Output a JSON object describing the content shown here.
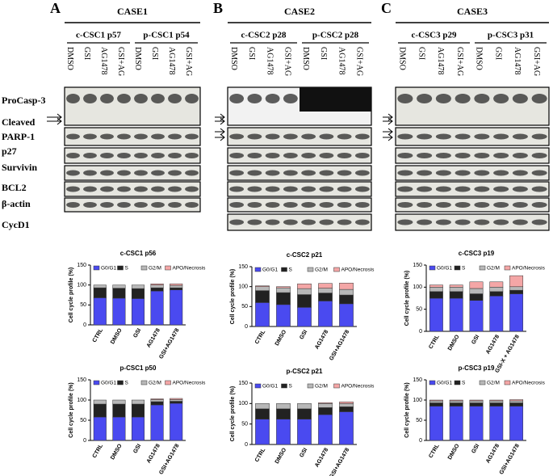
{
  "panels": [
    {
      "label": "A",
      "case": "CASE1",
      "groups": [
        {
          "name": "c-CSC1 p57",
          "lanes": [
            "DMSO",
            "GSI",
            "AG1478",
            "GSI+AG"
          ]
        },
        {
          "name": "p-CSC1 p54",
          "lanes": [
            "DMSO",
            "GSI",
            "AG1478",
            "GSI+AG"
          ]
        }
      ],
      "rows": [
        "ProCasp-3",
        "Cleaved",
        "PARP-1",
        "p27",
        "Survivin",
        "BCL2",
        "β-actin",
        "CycD1"
      ]
    },
    {
      "label": "B",
      "case": "CASE2",
      "groups": [
        {
          "name": "c-CSC2 p28",
          "lanes": [
            "DMSO",
            "GSI",
            "AG1478",
            "GSI+AG"
          ]
        },
        {
          "name": "p-CSC2 p28",
          "lanes": [
            "DMSO",
            "GSI",
            "AG1478",
            "GSI+AG"
          ]
        }
      ]
    },
    {
      "label": "C",
      "case": "CASE3",
      "groups": [
        {
          "name": "c-CSC3 p29",
          "lanes": [
            "DMSO",
            "GSI",
            "AG1478",
            "GSI+AG"
          ]
        },
        {
          "name": "p-CSC3 p31",
          "lanes": [
            "DMSO",
            "GSI",
            "AG1478",
            "GSI+AG"
          ]
        }
      ]
    }
  ],
  "chart_data": [
    {
      "type": "stacked_bar",
      "title": "c-CSC1 p56",
      "y_label": "Cell cycle profile (%)",
      "categories": [
        "CTRL",
        "DMSO",
        "GSI",
        "AG1478",
        "GSI+AG1478"
      ],
      "ylim": [
        0,
        150
      ],
      "yticks": [
        0,
        50,
        100,
        150
      ],
      "series": [
        {
          "name": "G0/G1",
          "color": "#4a4af0",
          "values": [
            68,
            67,
            66,
            85,
            88
          ]
        },
        {
          "name": "S",
          "color": "#222222",
          "values": [
            25,
            25,
            25,
            8,
            5
          ]
        },
        {
          "name": "G2/M",
          "color": "#b8b8b8",
          "values": [
            7,
            8,
            9,
            7,
            6
          ]
        },
        {
          "name": "APO/Necrosis",
          "color": "#f4a6a6",
          "values": [
            0,
            0,
            0,
            3,
            4
          ]
        }
      ]
    },
    {
      "type": "stacked_bar",
      "title": "c-CSC2 p21",
      "y_label": "Cell cycle profile (%)",
      "categories": [
        "CTRL",
        "DMSO",
        "GSI",
        "AG1478",
        "GSI+AG1478"
      ],
      "ylim": [
        0,
        150
      ],
      "yticks": [
        0,
        50,
        100,
        150
      ],
      "series": [
        {
          "name": "G0/G1",
          "color": "#4a4af0",
          "values": [
            60,
            55,
            48,
            64,
            57
          ]
        },
        {
          "name": "S",
          "color": "#222222",
          "values": [
            30,
            30,
            32,
            20,
            22
          ]
        },
        {
          "name": "G2/M",
          "color": "#b8b8b8",
          "values": [
            10,
            12,
            15,
            12,
            14
          ]
        },
        {
          "name": "APO/Necrosis",
          "color": "#f4a6a6",
          "values": [
            2,
            3,
            12,
            12,
            16
          ]
        }
      ]
    },
    {
      "type": "stacked_bar",
      "title": "c-CSC3 p19",
      "y_label": "Cell cycle profile (%)",
      "categories": [
        "CTRL",
        "DMSO",
        "GSI",
        "AG1478",
        "GSI-X + AG1478"
      ],
      "ylim": [
        0,
        150
      ],
      "yticks": [
        0,
        50,
        100,
        150
      ],
      "series": [
        {
          "name": "G0/G1",
          "color": "#4a4af0",
          "values": [
            75,
            75,
            70,
            80,
            85
          ]
        },
        {
          "name": "S",
          "color": "#222222",
          "values": [
            15,
            15,
            15,
            10,
            8
          ]
        },
        {
          "name": "G2/M",
          "color": "#b8b8b8",
          "values": [
            10,
            10,
            12,
            10,
            8
          ]
        },
        {
          "name": "APO/Necrosis",
          "color": "#f4a6a6",
          "values": [
            5,
            5,
            15,
            12,
            25
          ]
        }
      ]
    },
    {
      "type": "stacked_bar",
      "title": "p-CSC1 p50",
      "y_label": "Cell cycle profile (%)",
      "categories": [
        "CTRL",
        "DMSO",
        "GSI",
        "AG1478",
        "GSI+AG1478"
      ],
      "ylim": [
        0,
        150
      ],
      "yticks": [
        0,
        50,
        100,
        150
      ],
      "series": [
        {
          "name": "G0/G1",
          "color": "#4a4af0",
          "values": [
            58,
            58,
            58,
            88,
            92
          ]
        },
        {
          "name": "S",
          "color": "#222222",
          "values": [
            32,
            32,
            32,
            8,
            5
          ]
        },
        {
          "name": "G2/M",
          "color": "#b8b8b8",
          "values": [
            10,
            10,
            10,
            5,
            4
          ]
        },
        {
          "name": "APO/Necrosis",
          "color": "#f4a6a6",
          "values": [
            0,
            0,
            0,
            2,
            3
          ]
        }
      ]
    },
    {
      "type": "stacked_bar",
      "title": "p-CSC2 p21",
      "y_label": "Cell cycle profile (%)",
      "categories": [
        "CTRL",
        "DMSO",
        "GSI",
        "AG1478",
        "GSI+AG1478"
      ],
      "ylim": [
        0,
        150
      ],
      "yticks": [
        0,
        50,
        100,
        150
      ],
      "series": [
        {
          "name": "G0/G1",
          "color": "#4a4af0",
          "values": [
            62,
            62,
            62,
            73,
            80
          ]
        },
        {
          "name": "S",
          "color": "#222222",
          "values": [
            25,
            25,
            25,
            17,
            12
          ]
        },
        {
          "name": "G2/M",
          "color": "#b8b8b8",
          "values": [
            13,
            13,
            13,
            10,
            8
          ]
        },
        {
          "name": "APO/Necrosis",
          "color": "#f4a6a6",
          "values": [
            0,
            0,
            0,
            2,
            4
          ]
        }
      ]
    },
    {
      "type": "stacked_bar",
      "title": "p-CSC3 p19",
      "y_label": "Cell cycle profile (%)",
      "categories": [
        "CTRL",
        "DMSO",
        "GSI",
        "AG1478",
        "GSI+AG1478"
      ],
      "ylim": [
        0,
        150
      ],
      "yticks": [
        0,
        50,
        100,
        150
      ],
      "series": [
        {
          "name": "G0/G1",
          "color": "#4a4af0",
          "values": [
            85,
            85,
            85,
            85,
            85
          ]
        },
        {
          "name": "S",
          "color": "#222222",
          "values": [
            8,
            8,
            8,
            8,
            8
          ]
        },
        {
          "name": "G2/M",
          "color": "#b8b8b8",
          "values": [
            5,
            5,
            5,
            5,
            5
          ]
        },
        {
          "name": "APO/Necrosis",
          "color": "#f4a6a6",
          "values": [
            2,
            2,
            2,
            2,
            3
          ]
        }
      ]
    }
  ]
}
